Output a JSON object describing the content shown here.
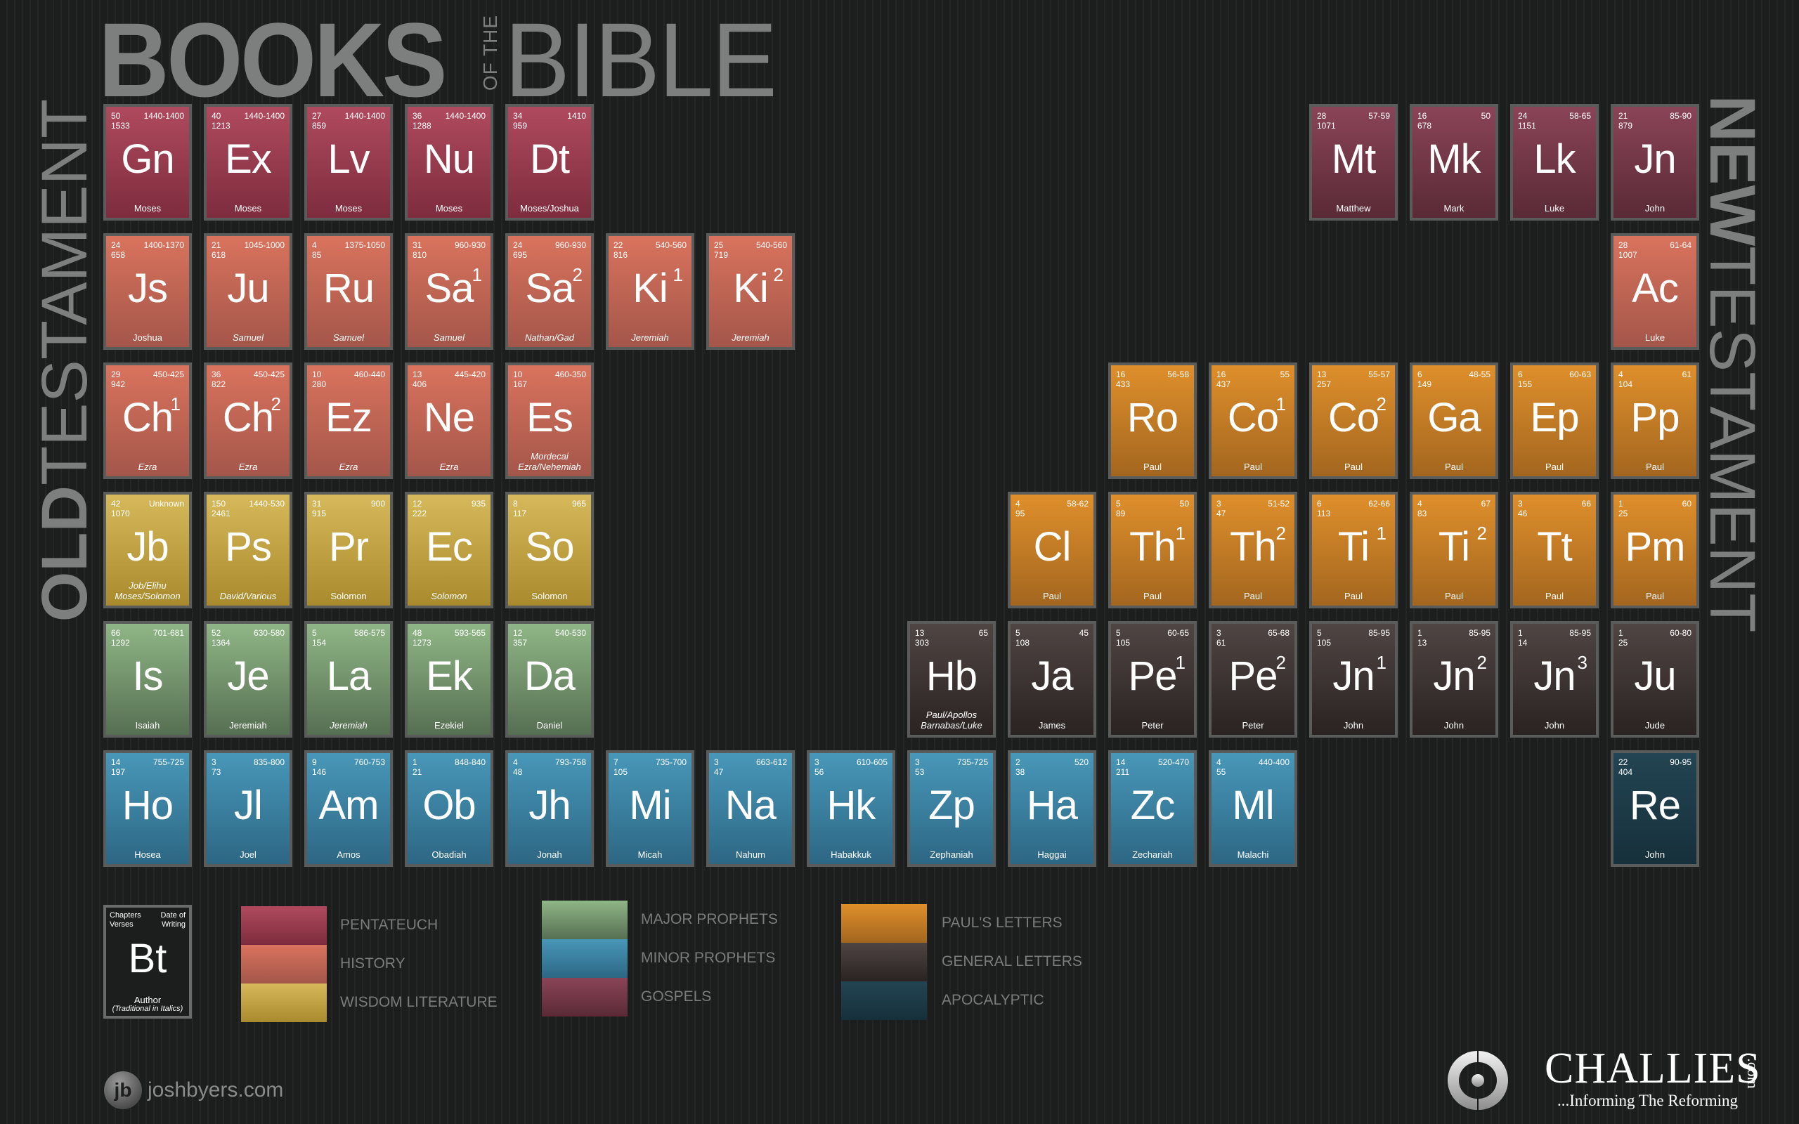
{
  "header": {
    "title_books": "BOOKS",
    "title_of_the": "OF THE",
    "title_bible": "BIBLE"
  },
  "side_titles": {
    "old_bold": "OLD",
    "old_thin": "TESTAMENT",
    "new_bold": "NEW",
    "new_thin": "TESTAMENT"
  },
  "colors": {
    "pentateuch": "#9a3c50",
    "history": "#c8674f",
    "wisdom": "#c9a845",
    "major_prophets": "#7a9c72",
    "minor_prophets": "#3c83a3",
    "gospels": "#733747",
    "pauls_letters": "#c97c25",
    "general_letters": "#3d3433",
    "apocalyptic": "#1f3c49",
    "background": "#1c1d1d",
    "title_gray": "#7d7e7e"
  },
  "books": [
    {
      "sym": "Gn",
      "sup": "",
      "chapters": "50",
      "verses": "1533",
      "date": "1440-1400",
      "author": "Moses",
      "italic": false,
      "cat": "pent",
      "col": 0,
      "row": 0
    },
    {
      "sym": "Ex",
      "sup": "",
      "chapters": "40",
      "verses": "1213",
      "date": "1440-1400",
      "author": "Moses",
      "italic": false,
      "cat": "pent",
      "col": 1,
      "row": 0
    },
    {
      "sym": "Lv",
      "sup": "",
      "chapters": "27",
      "verses": "859",
      "date": "1440-1400",
      "author": "Moses",
      "italic": false,
      "cat": "pent",
      "col": 2,
      "row": 0
    },
    {
      "sym": "Nu",
      "sup": "",
      "chapters": "36",
      "verses": "1288",
      "date": "1440-1400",
      "author": "Moses",
      "italic": false,
      "cat": "pent",
      "col": 3,
      "row": 0
    },
    {
      "sym": "Dt",
      "sup": "",
      "chapters": "34",
      "verses": "959",
      "date": "1410",
      "author": "Moses/Joshua",
      "italic": false,
      "cat": "pent",
      "col": 4,
      "row": 0
    },
    {
      "sym": "Js",
      "sup": "",
      "chapters": "24",
      "verses": "658",
      "date": "1400-1370",
      "author": "Joshua",
      "italic": false,
      "cat": "hist",
      "col": 0,
      "row": 1
    },
    {
      "sym": "Ju",
      "sup": "",
      "chapters": "21",
      "verses": "618",
      "date": "1045-1000",
      "author": "Samuel",
      "italic": true,
      "cat": "hist",
      "col": 1,
      "row": 1
    },
    {
      "sym": "Ru",
      "sup": "",
      "chapters": "4",
      "verses": "85",
      "date": "1375-1050",
      "author": "Samuel",
      "italic": true,
      "cat": "hist",
      "col": 2,
      "row": 1
    },
    {
      "sym": "Sa",
      "sup": "1",
      "chapters": "31",
      "verses": "810",
      "date": "960-930",
      "author": "Samuel",
      "italic": true,
      "cat": "hist",
      "col": 3,
      "row": 1
    },
    {
      "sym": "Sa",
      "sup": "2",
      "chapters": "24",
      "verses": "695",
      "date": "960-930",
      "author": "Nathan/Gad",
      "italic": true,
      "cat": "hist",
      "col": 4,
      "row": 1
    },
    {
      "sym": "Ki",
      "sup": "1",
      "chapters": "22",
      "verses": "816",
      "date": "540-560",
      "author": "Jeremiah",
      "italic": true,
      "cat": "hist",
      "col": 5,
      "row": 1
    },
    {
      "sym": "Ki",
      "sup": "2",
      "chapters": "25",
      "verses": "719",
      "date": "540-560",
      "author": "Jeremiah",
      "italic": true,
      "cat": "hist",
      "col": 6,
      "row": 1
    },
    {
      "sym": "Ch",
      "sup": "1",
      "chapters": "29",
      "verses": "942",
      "date": "450-425",
      "author": "Ezra",
      "italic": true,
      "cat": "hist",
      "col": 0,
      "row": 2
    },
    {
      "sym": "Ch",
      "sup": "2",
      "chapters": "36",
      "verses": "822",
      "date": "450-425",
      "author": "Ezra",
      "italic": true,
      "cat": "hist",
      "col": 1,
      "row": 2
    },
    {
      "sym": "Ez",
      "sup": "",
      "chapters": "10",
      "verses": "280",
      "date": "460-440",
      "author": "Ezra",
      "italic": true,
      "cat": "hist",
      "col": 2,
      "row": 2
    },
    {
      "sym": "Ne",
      "sup": "",
      "chapters": "13",
      "verses": "406",
      "date": "445-420",
      "author": "Ezra",
      "italic": true,
      "cat": "hist",
      "col": 3,
      "row": 2
    },
    {
      "sym": "Es",
      "sup": "",
      "chapters": "10",
      "verses": "167",
      "date": "460-350",
      "author": "Mordecai Ezra/Nehemiah",
      "author1": "Mordecai",
      "author2": "Ezra/Nehemiah",
      "italic": true,
      "cat": "hist",
      "col": 4,
      "row": 2
    },
    {
      "sym": "Jb",
      "sup": "",
      "chapters": "42",
      "verses": "1070",
      "date": "Unknown",
      "author": "Job/Elihu Moses/Solomon",
      "author1": "Job/Elihu",
      "author2": "Moses/Solomon",
      "italic": true,
      "cat": "wis",
      "col": 0,
      "row": 3
    },
    {
      "sym": "Ps",
      "sup": "",
      "chapters": "150",
      "verses": "2461",
      "date": "1440-530",
      "author": "David/Various",
      "italic": true,
      "cat": "wis",
      "col": 1,
      "row": 3
    },
    {
      "sym": "Pr",
      "sup": "",
      "chapters": "31",
      "verses": "915",
      "date": "900",
      "author": "Solomon",
      "italic": false,
      "cat": "wis",
      "col": 2,
      "row": 3
    },
    {
      "sym": "Ec",
      "sup": "",
      "chapters": "12",
      "verses": "222",
      "date": "935",
      "author": "Solomon",
      "italic": true,
      "cat": "wis",
      "col": 3,
      "row": 3
    },
    {
      "sym": "So",
      "sup": "",
      "chapters": "8",
      "verses": "117",
      "date": "965",
      "author": "Solomon",
      "italic": false,
      "cat": "wis",
      "col": 4,
      "row": 3
    },
    {
      "sym": "Is",
      "sup": "",
      "chapters": "66",
      "verses": "1292",
      "date": "701-681",
      "author": "Isaiah",
      "italic": false,
      "cat": "maj",
      "col": 0,
      "row": 4
    },
    {
      "sym": "Je",
      "sup": "",
      "chapters": "52",
      "verses": "1364",
      "date": "630-580",
      "author": "Jeremiah",
      "italic": false,
      "cat": "maj",
      "col": 1,
      "row": 4
    },
    {
      "sym": "La",
      "sup": "",
      "chapters": "5",
      "verses": "154",
      "date": "586-575",
      "author": "Jeremiah",
      "italic": true,
      "cat": "maj",
      "col": 2,
      "row": 4
    },
    {
      "sym": "Ek",
      "sup": "",
      "chapters": "48",
      "verses": "1273",
      "date": "593-565",
      "author": "Ezekiel",
      "italic": false,
      "cat": "maj",
      "col": 3,
      "row": 4
    },
    {
      "sym": "Da",
      "sup": "",
      "chapters": "12",
      "verses": "357",
      "date": "540-530",
      "author": "Daniel",
      "italic": false,
      "cat": "maj",
      "col": 4,
      "row": 4
    },
    {
      "sym": "Ho",
      "sup": "",
      "chapters": "14",
      "verses": "197",
      "date": "755-725",
      "author": "Hosea",
      "italic": false,
      "cat": "min",
      "col": 0,
      "row": 5
    },
    {
      "sym": "Jl",
      "sup": "",
      "chapters": "3",
      "verses": "73",
      "date": "835-800",
      "author": "Joel",
      "italic": false,
      "cat": "min",
      "col": 1,
      "row": 5
    },
    {
      "sym": "Am",
      "sup": "",
      "chapters": "9",
      "verses": "146",
      "date": "760-753",
      "author": "Amos",
      "italic": false,
      "cat": "min",
      "col": 2,
      "row": 5
    },
    {
      "sym": "Ob",
      "sup": "",
      "chapters": "1",
      "verses": "21",
      "date": "848-840",
      "author": "Obadiah",
      "italic": false,
      "cat": "min",
      "col": 3,
      "row": 5
    },
    {
      "sym": "Jh",
      "sup": "",
      "chapters": "4",
      "verses": "48",
      "date": "793-758",
      "author": "Jonah",
      "italic": false,
      "cat": "min",
      "col": 4,
      "row": 5
    },
    {
      "sym": "Mi",
      "sup": "",
      "chapters": "7",
      "verses": "105",
      "date": "735-700",
      "author": "Micah",
      "italic": false,
      "cat": "min",
      "col": 5,
      "row": 5
    },
    {
      "sym": "Na",
      "sup": "",
      "chapters": "3",
      "verses": "47",
      "date": "663-612",
      "author": "Nahum",
      "italic": false,
      "cat": "min",
      "col": 6,
      "row": 5
    },
    {
      "sym": "Hk",
      "sup": "",
      "chapters": "3",
      "verses": "56",
      "date": "610-605",
      "author": "Habakkuk",
      "italic": false,
      "cat": "min",
      "col": 7,
      "row": 5
    },
    {
      "sym": "Zp",
      "sup": "",
      "chapters": "3",
      "verses": "53",
      "date": "735-725",
      "author": "Zephaniah",
      "italic": false,
      "cat": "min",
      "col": 8,
      "row": 5
    },
    {
      "sym": "Ha",
      "sup": "",
      "chapters": "2",
      "verses": "38",
      "date": "520",
      "author": "Haggai",
      "italic": false,
      "cat": "min",
      "col": 9,
      "row": 5
    },
    {
      "sym": "Zc",
      "sup": "",
      "chapters": "14",
      "verses": "211",
      "date": "520-470",
      "author": "Zechariah",
      "italic": false,
      "cat": "min",
      "col": 10,
      "row": 5
    },
    {
      "sym": "Ml",
      "sup": "",
      "chapters": "4",
      "verses": "55",
      "date": "440-400",
      "author": "Malachi",
      "italic": false,
      "cat": "min",
      "col": 11,
      "row": 5
    },
    {
      "sym": "Mt",
      "sup": "",
      "chapters": "28",
      "verses": "1071",
      "date": "57-59",
      "author": "Matthew",
      "italic": false,
      "cat": "gos",
      "col": 12,
      "row": 0
    },
    {
      "sym": "Mk",
      "sup": "",
      "chapters": "16",
      "verses": "678",
      "date": "50",
      "author": "Mark",
      "italic": false,
      "cat": "gos",
      "col": 13,
      "row": 0
    },
    {
      "sym": "Lk",
      "sup": "",
      "chapters": "24",
      "verses": "1151",
      "date": "58-65",
      "author": "Luke",
      "italic": false,
      "cat": "gos",
      "col": 14,
      "row": 0
    },
    {
      "sym": "Jn",
      "sup": "",
      "chapters": "21",
      "verses": "879",
      "date": "85-90",
      "author": "John",
      "italic": false,
      "cat": "gos",
      "col": 15,
      "row": 0
    },
    {
      "sym": "Ac",
      "sup": "",
      "chapters": "28",
      "verses": "1007",
      "date": "61-64",
      "author": "Luke",
      "italic": false,
      "cat": "hist",
      "col": 15,
      "row": 1
    },
    {
      "sym": "Ro",
      "sup": "",
      "chapters": "16",
      "verses": "433",
      "date": "56-58",
      "author": "Paul",
      "italic": false,
      "cat": "paul",
      "col": 10,
      "row": 2
    },
    {
      "sym": "Co",
      "sup": "1",
      "chapters": "16",
      "verses": "437",
      "date": "55",
      "author": "Paul",
      "italic": false,
      "cat": "paul",
      "col": 11,
      "row": 2
    },
    {
      "sym": "Co",
      "sup": "2",
      "chapters": "13",
      "verses": "257",
      "date": "55-57",
      "author": "Paul",
      "italic": false,
      "cat": "paul",
      "col": 12,
      "row": 2
    },
    {
      "sym": "Ga",
      "sup": "",
      "chapters": "6",
      "verses": "149",
      "date": "48-55",
      "author": "Paul",
      "italic": false,
      "cat": "paul",
      "col": 13,
      "row": 2
    },
    {
      "sym": "Ep",
      "sup": "",
      "chapters": "6",
      "verses": "155",
      "date": "60-63",
      "author": "Paul",
      "italic": false,
      "cat": "paul",
      "col": 14,
      "row": 2
    },
    {
      "sym": "Pp",
      "sup": "",
      "chapters": "4",
      "verses": "104",
      "date": "61",
      "author": "Paul",
      "italic": false,
      "cat": "paul",
      "col": 15,
      "row": 2
    },
    {
      "sym": "Cl",
      "sup": "",
      "chapters": "4",
      "verses": "95",
      "date": "58-62",
      "author": "Paul",
      "italic": false,
      "cat": "paul",
      "col": 9,
      "row": 3
    },
    {
      "sym": "Th",
      "sup": "1",
      "chapters": "5",
      "verses": "89",
      "date": "50",
      "author": "Paul",
      "italic": false,
      "cat": "paul",
      "col": 10,
      "row": 3
    },
    {
      "sym": "Th",
      "sup": "2",
      "chapters": "3",
      "verses": "47",
      "date": "51-52",
      "author": "Paul",
      "italic": false,
      "cat": "paul",
      "col": 11,
      "row": 3
    },
    {
      "sym": "Ti",
      "sup": "1",
      "chapters": "6",
      "verses": "113",
      "date": "62-66",
      "author": "Paul",
      "italic": false,
      "cat": "paul",
      "col": 12,
      "row": 3
    },
    {
      "sym": "Ti",
      "sup": "2",
      "chapters": "4",
      "verses": "83",
      "date": "67",
      "author": "Paul",
      "italic": false,
      "cat": "paul",
      "col": 13,
      "row": 3
    },
    {
      "sym": "Tt",
      "sup": "",
      "chapters": "3",
      "verses": "46",
      "date": "66",
      "author": "Paul",
      "italic": false,
      "cat": "paul",
      "col": 14,
      "row": 3
    },
    {
      "sym": "Pm",
      "sup": "",
      "chapters": "1",
      "verses": "25",
      "date": "60",
      "author": "Paul",
      "italic": false,
      "cat": "paul",
      "col": 15,
      "row": 3
    },
    {
      "sym": "Hb",
      "sup": "",
      "chapters": "13",
      "verses": "303",
      "date": "65",
      "author": "Paul/Apollos Barnabas/Luke",
      "author1": "Paul/Apollos",
      "author2": "Barnabas/Luke",
      "italic": true,
      "cat": "gen",
      "col": 8,
      "row": 4
    },
    {
      "sym": "Ja",
      "sup": "",
      "chapters": "5",
      "verses": "108",
      "date": "45",
      "author": "James",
      "italic": false,
      "cat": "gen",
      "col": 9,
      "row": 4
    },
    {
      "sym": "Pe",
      "sup": "1",
      "chapters": "5",
      "verses": "105",
      "date": "60-65",
      "author": "Peter",
      "italic": false,
      "cat": "gen",
      "col": 10,
      "row": 4
    },
    {
      "sym": "Pe",
      "sup": "2",
      "chapters": "3",
      "verses": "61",
      "date": "65-68",
      "author": "Peter",
      "italic": false,
      "cat": "gen",
      "col": 11,
      "row": 4
    },
    {
      "sym": "Jn",
      "sup": "1",
      "chapters": "5",
      "verses": "105",
      "date": "85-95",
      "author": "John",
      "italic": false,
      "cat": "gen",
      "col": 12,
      "row": 4
    },
    {
      "sym": "Jn",
      "sup": "2",
      "chapters": "1",
      "verses": "13",
      "date": "85-95",
      "author": "John",
      "italic": false,
      "cat": "gen",
      "col": 13,
      "row": 4
    },
    {
      "sym": "Jn",
      "sup": "3",
      "chapters": "1",
      "verses": "14",
      "date": "85-95",
      "author": "John",
      "italic": false,
      "cat": "gen",
      "col": 14,
      "row": 4
    },
    {
      "sym": "Ju",
      "sup": "",
      "chapters": "1",
      "verses": "25",
      "date": "60-80",
      "author": "Jude",
      "italic": false,
      "cat": "gen",
      "col": 15,
      "row": 4
    },
    {
      "sym": "Re",
      "sup": "",
      "chapters": "22",
      "verses": "404",
      "date": "90-95",
      "author": "John",
      "italic": false,
      "cat": "apoc",
      "col": 15,
      "row": 5
    }
  ],
  "key_tile": {
    "chapters": "Chapters",
    "verses": "Verses",
    "date_line1": "Date of",
    "date_line2": "Writing",
    "symbol": "Bt",
    "author": "Author",
    "author_note": "(Traditional in Italics)"
  },
  "legend": [
    {
      "label": "PENTATEUCH",
      "cat": "pent"
    },
    {
      "label": "HISTORY",
      "cat": "hist"
    },
    {
      "label": "WISDOM LITERATURE",
      "cat": "wis"
    },
    {
      "label": "MAJOR PROPHETS",
      "cat": "maj"
    },
    {
      "label": "MINOR PROPHETS",
      "cat": "min"
    },
    {
      "label": "GOSPELS",
      "cat": "gos"
    },
    {
      "label": "PAUL'S LETTERS",
      "cat": "paul"
    },
    {
      "label": "GENERAL LETTERS",
      "cat": "gen"
    },
    {
      "label": "APOCALYPTIC",
      "cat": "apoc"
    }
  ],
  "footer": {
    "left_logo_glyph": "jb",
    "left_site": "joshbyers.com",
    "right_name": "CHALLIES",
    "right_com": ".com",
    "right_tagline": "...Informing The Reforming"
  }
}
